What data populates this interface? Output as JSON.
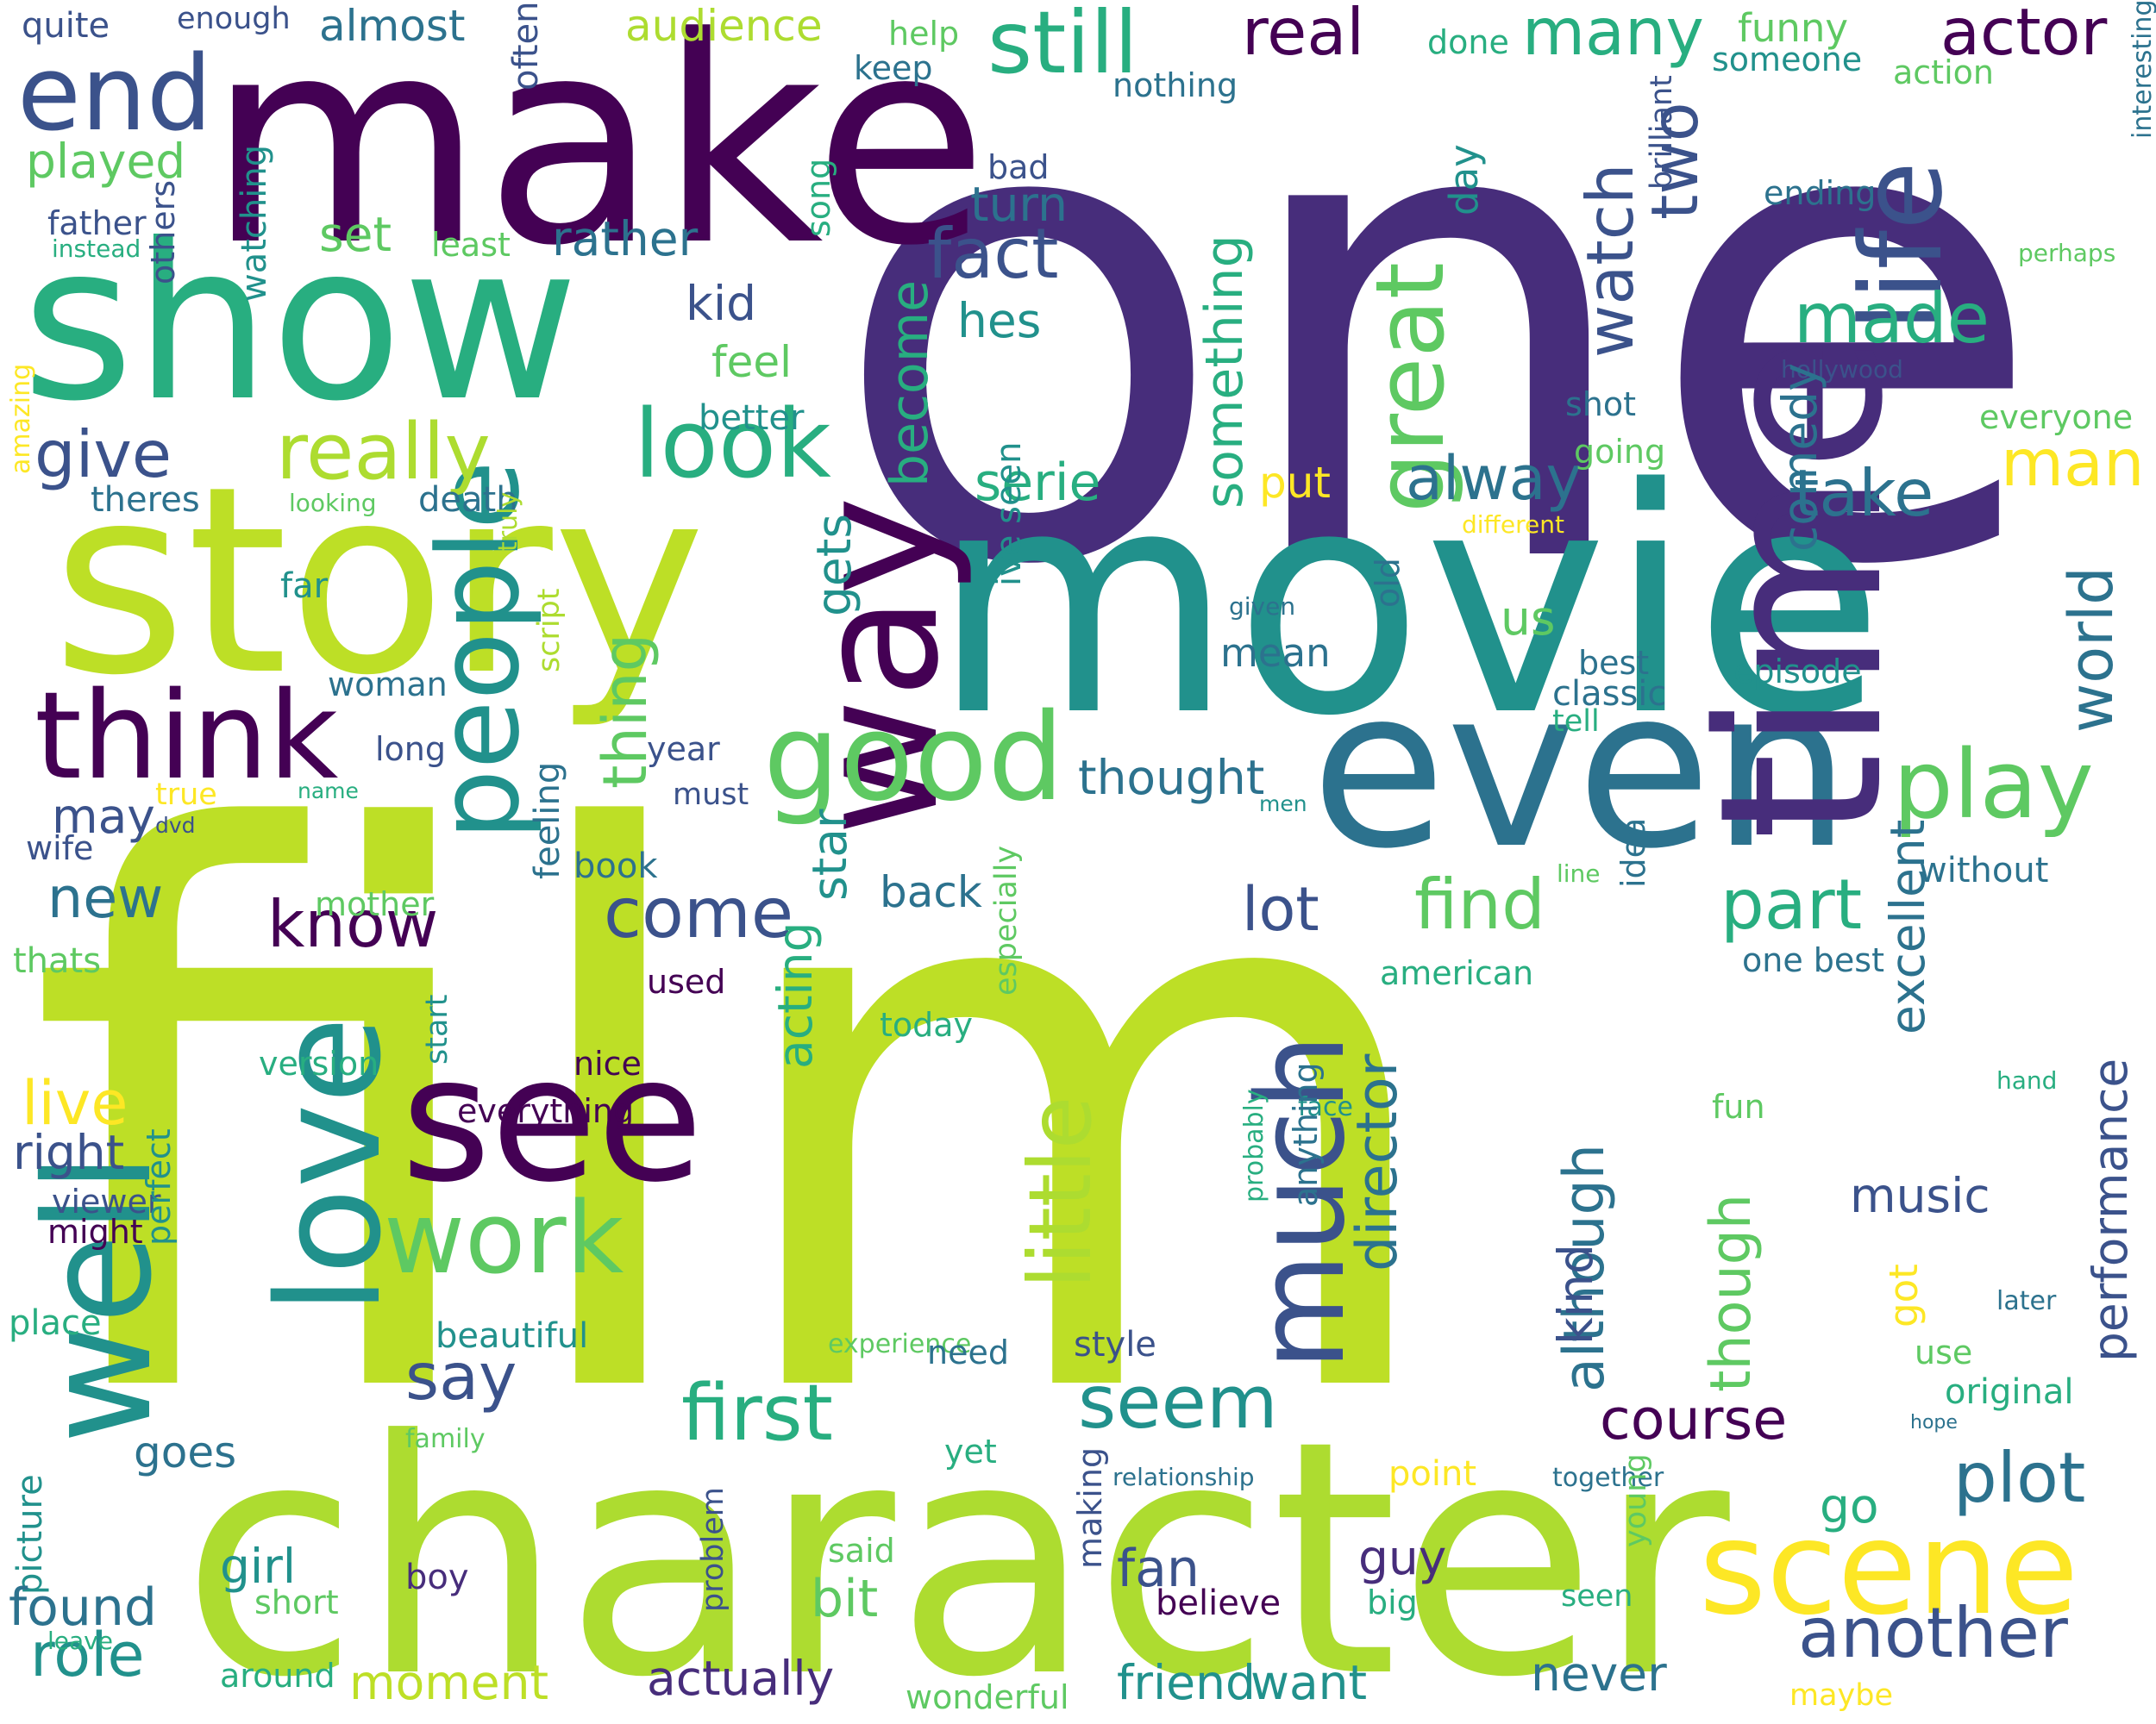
{
  "palette": {
    "dark_purple": "#440154",
    "indigo": "#472d7b",
    "slate_blue": "#3b528b",
    "steel_blue": "#2c728e",
    "teal": "#21918c",
    "sea_green": "#28ae80",
    "green": "#5ec962",
    "lime": "#addc30",
    "chartreuse": "#bddf26",
    "yellow": "#fde725"
  },
  "words": [
    {
      "text": "film",
      "color": "#bddf26"
    },
    {
      "text": "one",
      "color": "#472d7b"
    },
    {
      "text": "movie",
      "color": "#21918c"
    },
    {
      "text": "character",
      "color": "#addc30"
    },
    {
      "text": "make",
      "color": "#440154"
    },
    {
      "text": "story",
      "color": "#bddf26"
    },
    {
      "text": "show",
      "color": "#28ae80"
    },
    {
      "text": "even",
      "color": "#2c728e"
    },
    {
      "text": "time",
      "color": "#472d7b"
    },
    {
      "text": "way",
      "color": "#440154"
    },
    {
      "text": "well",
      "color": "#21918c"
    },
    {
      "text": "see",
      "color": "#440154"
    },
    {
      "text": "love",
      "color": "#21918c"
    },
    {
      "text": "people",
      "color": "#21918c"
    },
    {
      "text": "think",
      "color": "#440154"
    },
    {
      "text": "good",
      "color": "#5ec962"
    },
    {
      "text": "scene",
      "color": "#fde725"
    },
    {
      "text": "much",
      "color": "#3b528b"
    },
    {
      "text": "end",
      "color": "#3b528b"
    },
    {
      "text": "life",
      "color": "#3b528b"
    },
    {
      "text": "look",
      "color": "#28ae80"
    },
    {
      "text": "great",
      "color": "#5ec962"
    },
    {
      "text": "work",
      "color": "#5ec962"
    },
    {
      "text": "play",
      "color": "#5ec962"
    },
    {
      "text": "little",
      "color": "#addc30"
    },
    {
      "text": "still",
      "color": "#28ae80"
    },
    {
      "text": "really",
      "color": "#addc30"
    },
    {
      "text": "first",
      "color": "#28ae80"
    },
    {
      "text": "seem",
      "color": "#21918c"
    },
    {
      "text": "plot",
      "color": "#2c728e"
    },
    {
      "text": "another",
      "color": "#3b528b"
    },
    {
      "text": "fact",
      "color": "#3b528b"
    },
    {
      "text": "made",
      "color": "#28ae80"
    },
    {
      "text": "real",
      "color": "#440154"
    },
    {
      "text": "many",
      "color": "#28ae80"
    },
    {
      "text": "actor",
      "color": "#440154"
    },
    {
      "text": "know",
      "color": "#440154"
    },
    {
      "text": "come",
      "color": "#3b528b"
    },
    {
      "text": "find",
      "color": "#5ec962"
    },
    {
      "text": "part",
      "color": "#28ae80"
    },
    {
      "text": "alway",
      "color": "#2c728e"
    },
    {
      "text": "watch",
      "color": "#3b528b"
    },
    {
      "text": "two",
      "color": "#3b528b"
    },
    {
      "text": "something",
      "color": "#28ae80"
    },
    {
      "text": "thing",
      "color": "#5ec962"
    },
    {
      "text": "give",
      "color": "#3b528b"
    },
    {
      "text": "say",
      "color": "#3b528b"
    },
    {
      "text": "lot",
      "color": "#3b528b"
    },
    {
      "text": "take",
      "color": "#2c728e"
    },
    {
      "text": "man",
      "color": "#fde725"
    },
    {
      "text": "world",
      "color": "#2c728e"
    },
    {
      "text": "performance",
      "color": "#3b528b"
    },
    {
      "text": "director",
      "color": "#2c728e"
    },
    {
      "text": "although",
      "color": "#2c728e"
    },
    {
      "text": "though",
      "color": "#5ec962"
    },
    {
      "text": "course",
      "color": "#440154"
    },
    {
      "text": "role",
      "color": "#21918c"
    },
    {
      "text": "moment",
      "color": "#bddf26"
    },
    {
      "text": "actually",
      "color": "#472d7b"
    },
    {
      "text": "friend",
      "color": "#21918c"
    },
    {
      "text": "want",
      "color": "#21918c"
    },
    {
      "text": "never",
      "color": "#2c728e"
    },
    {
      "text": "serie",
      "color": "#28ae80"
    },
    {
      "text": "turn",
      "color": "#2c728e"
    },
    {
      "text": "hes",
      "color": "#21918c"
    },
    {
      "text": "kid",
      "color": "#3b528b"
    },
    {
      "text": "feel",
      "color": "#5ec962"
    },
    {
      "text": "better",
      "color": "#21918c"
    },
    {
      "text": "played",
      "color": "#5ec962"
    },
    {
      "text": "almost",
      "color": "#2c728e"
    },
    {
      "text": "quite",
      "color": "#3b528b"
    },
    {
      "text": "enough",
      "color": "#3b528b"
    },
    {
      "text": "audience",
      "color": "#addc30"
    },
    {
      "text": "help",
      "color": "#5ec962"
    },
    {
      "text": "keep",
      "color": "#2c728e"
    },
    {
      "text": "done",
      "color": "#28ae80"
    },
    {
      "text": "funny",
      "color": "#5ec962"
    },
    {
      "text": "someone",
      "color": "#21918c"
    },
    {
      "text": "action",
      "color": "#5ec962"
    },
    {
      "text": "nothing",
      "color": "#2c728e"
    },
    {
      "text": "bad",
      "color": "#3b528b"
    },
    {
      "text": "ending",
      "color": "#2c728e"
    },
    {
      "text": "interesting",
      "color": "#2c728e"
    },
    {
      "text": "perhaps",
      "color": "#5ec962"
    },
    {
      "text": "hollywood",
      "color": "#3b528b"
    },
    {
      "text": "everyone",
      "color": "#5ec962"
    },
    {
      "text": "shot",
      "color": "#2c728e"
    },
    {
      "text": "going",
      "color": "#5ec962"
    },
    {
      "text": "brilliant",
      "color": "#3b528b"
    },
    {
      "text": "set",
      "color": "#5ec962"
    },
    {
      "text": "least",
      "color": "#5ec962"
    },
    {
      "text": "rather",
      "color": "#2c728e"
    },
    {
      "text": "father",
      "color": "#3b528b"
    },
    {
      "text": "instead",
      "color": "#28ae80"
    },
    {
      "text": "often",
      "color": "#3b528b"
    },
    {
      "text": "song",
      "color": "#28ae80"
    },
    {
      "text": "day",
      "color": "#21918c"
    },
    {
      "text": "others",
      "color": "#3b528b"
    },
    {
      "text": "watching",
      "color": "#21918c"
    },
    {
      "text": "theres",
      "color": "#2c728e"
    },
    {
      "text": "looking",
      "color": "#5ec962"
    },
    {
      "text": "death",
      "color": "#2c728e"
    },
    {
      "text": "put",
      "color": "#fde725"
    },
    {
      "text": "different",
      "color": "#fde725"
    },
    {
      "text": "amazing",
      "color": "#fde725"
    },
    {
      "text": "far",
      "color": "#21918c"
    },
    {
      "text": "truly",
      "color": "#addc30"
    },
    {
      "text": "given",
      "color": "#2c728e"
    },
    {
      "text": "mean",
      "color": "#2c728e"
    },
    {
      "text": "old",
      "color": "#2c728e"
    },
    {
      "text": "us",
      "color": "#5ec962"
    },
    {
      "text": "comedy",
      "color": "#2c728e"
    },
    {
      "text": "best",
      "color": "#2c728e"
    },
    {
      "text": "classic",
      "color": "#2c728e"
    },
    {
      "text": "tell",
      "color": "#28ae80"
    },
    {
      "text": "episode",
      "color": "#21918c"
    },
    {
      "text": "become",
      "color": "#28ae80"
    },
    {
      "text": "gets",
      "color": "#21918c"
    },
    {
      "text": "ive seen",
      "color": "#21918c"
    },
    {
      "text": "thought",
      "color": "#2c728e"
    },
    {
      "text": "woman",
      "color": "#2c728e"
    },
    {
      "text": "long",
      "color": "#3b528b"
    },
    {
      "text": "script",
      "color": "#addc30"
    },
    {
      "text": "year",
      "color": "#3b528b"
    },
    {
      "text": "must",
      "color": "#3b528b"
    },
    {
      "text": "may",
      "color": "#3b528b"
    },
    {
      "text": "true",
      "color": "#fde725"
    },
    {
      "text": "name",
      "color": "#28ae80"
    },
    {
      "text": "wife",
      "color": "#3b528b"
    },
    {
      "text": "dvd",
      "color": "#3b528b"
    },
    {
      "text": "men",
      "color": "#21918c"
    },
    {
      "text": "new",
      "color": "#2c728e"
    },
    {
      "text": "book",
      "color": "#2c728e"
    },
    {
      "text": "back",
      "color": "#2c728e"
    },
    {
      "text": "line",
      "color": "#5ec962"
    },
    {
      "text": "without",
      "color": "#2c728e"
    },
    {
      "text": "mother",
      "color": "#5ec962"
    },
    {
      "text": "feeling",
      "color": "#2c728e"
    },
    {
      "text": "idea",
      "color": "#2c728e"
    },
    {
      "text": "one best",
      "color": "#2c728e"
    },
    {
      "text": "thats",
      "color": "#5ec962"
    },
    {
      "text": "used",
      "color": "#440154"
    },
    {
      "text": "american",
      "color": "#28ae80"
    },
    {
      "text": "star",
      "color": "#21918c"
    },
    {
      "text": "today",
      "color": "#28ae80"
    },
    {
      "text": "acting",
      "color": "#28ae80"
    },
    {
      "text": "especially",
      "color": "#5ec962"
    },
    {
      "text": "version",
      "color": "#28ae80"
    },
    {
      "text": "start",
      "color": "#21918c"
    },
    {
      "text": "nice",
      "color": "#440154"
    },
    {
      "text": "excellent",
      "color": "#2c728e"
    },
    {
      "text": "hand",
      "color": "#28ae80"
    },
    {
      "text": "live",
      "color": "#fde725"
    },
    {
      "text": "everything",
      "color": "#440154"
    },
    {
      "text": "fun",
      "color": "#5ec962"
    },
    {
      "text": "right",
      "color": "#3b528b"
    },
    {
      "text": "viewer",
      "color": "#3b528b"
    },
    {
      "text": "might",
      "color": "#440154"
    },
    {
      "text": "face",
      "color": "#21918c"
    },
    {
      "text": "probably",
      "color": "#28ae80"
    },
    {
      "text": "music",
      "color": "#3b528b"
    },
    {
      "text": "anything",
      "color": "#2c728e"
    },
    {
      "text": "later",
      "color": "#2c728e"
    },
    {
      "text": "place",
      "color": "#28ae80"
    },
    {
      "text": "perfect",
      "color": "#21918c"
    },
    {
      "text": "beautiful",
      "color": "#21918c"
    },
    {
      "text": "experience",
      "color": "#5ec962"
    },
    {
      "text": "style",
      "color": "#3b528b"
    },
    {
      "text": "need",
      "color": "#2c728e"
    },
    {
      "text": "got",
      "color": "#fde725"
    },
    {
      "text": "use",
      "color": "#5ec962"
    },
    {
      "text": "original",
      "color": "#28ae80"
    },
    {
      "text": "goes",
      "color": "#2c728e"
    },
    {
      "text": "family",
      "color": "#5ec962"
    },
    {
      "text": "hope",
      "color": "#2c728e"
    },
    {
      "text": "kind",
      "color": "#3b528b"
    },
    {
      "text": "yet",
      "color": "#28ae80"
    },
    {
      "text": "point",
      "color": "#fde725"
    },
    {
      "text": "relationship",
      "color": "#2c728e"
    },
    {
      "text": "together",
      "color": "#2c728e"
    },
    {
      "text": "go",
      "color": "#28ae80"
    },
    {
      "text": "making",
      "color": "#3b528b"
    },
    {
      "text": "young",
      "color": "#5ec962"
    },
    {
      "text": "problem",
      "color": "#3b528b"
    },
    {
      "text": "picture",
      "color": "#21918c"
    },
    {
      "text": "girl",
      "color": "#21918c"
    },
    {
      "text": "found",
      "color": "#2c728e"
    },
    {
      "text": "short",
      "color": "#5ec962"
    },
    {
      "text": "boy",
      "color": "#472d7b"
    },
    {
      "text": "said",
      "color": "#5ec962"
    },
    {
      "text": "bit",
      "color": "#5ec962"
    },
    {
      "text": "fan",
      "color": "#3b528b"
    },
    {
      "text": "believe",
      "color": "#440154"
    },
    {
      "text": "guy",
      "color": "#472d7b"
    },
    {
      "text": "big",
      "color": "#28ae80"
    },
    {
      "text": "seen",
      "color": "#28ae80"
    },
    {
      "text": "leave",
      "color": "#28ae80"
    },
    {
      "text": "around",
      "color": "#28ae80"
    },
    {
      "text": "wonderful",
      "color": "#5ec962"
    },
    {
      "text": "maybe",
      "color": "#fde725"
    }
  ]
}
